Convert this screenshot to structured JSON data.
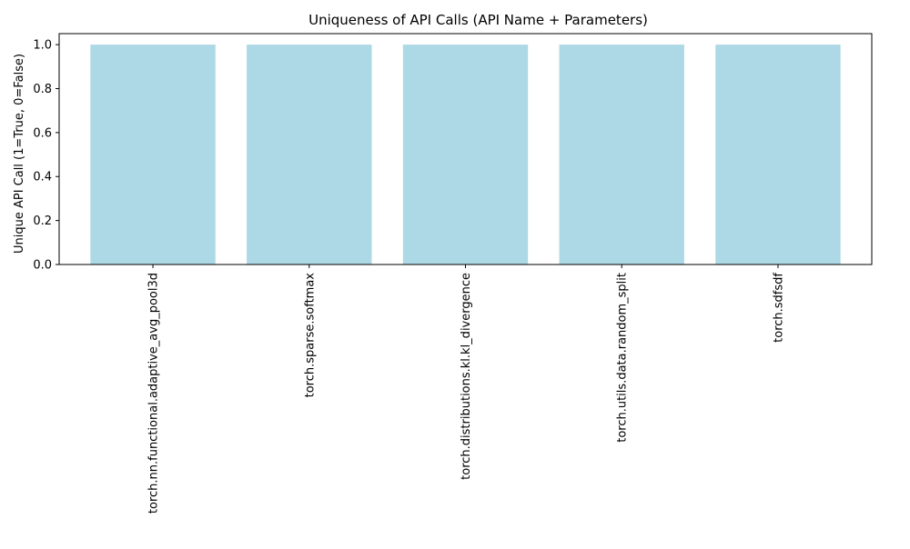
{
  "chart_data": {
    "type": "bar",
    "title": "Uniqueness of API Calls (API Name + Parameters)",
    "xlabel": "",
    "ylabel": "Unique API Call (1=True, 0=False)",
    "categories": [
      "torch.nn.functional.adaptive_avg_pool3d",
      "torch.sparse.softmax",
      "torch.distributions.kl.kl_divergence",
      "torch.utils.data.random_split",
      "torch.sdfsdf"
    ],
    "values": [
      1,
      1,
      1,
      1,
      1
    ],
    "ylim": [
      0,
      1.05
    ],
    "yticks": [
      0.0,
      0.2,
      0.4,
      0.6,
      0.8,
      1.0
    ],
    "ytick_labels": [
      "0.0",
      "0.2",
      "0.4",
      "0.6",
      "0.8",
      "1.0"
    ],
    "bar_color": "#add8e6",
    "grid": false,
    "legend": "none"
  }
}
